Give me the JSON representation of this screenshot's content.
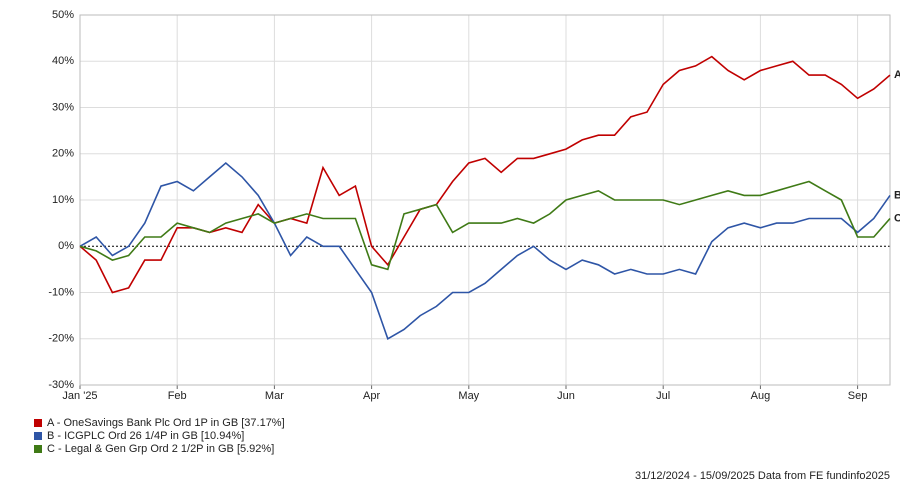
{
  "chart_data": {
    "type": "line",
    "categories": [
      "Jan '25",
      null,
      null,
      null,
      null,
      null,
      "Feb",
      null,
      null,
      null,
      null,
      null,
      "Mar",
      null,
      null,
      null,
      null,
      null,
      "Apr",
      null,
      null,
      null,
      null,
      null,
      "May",
      null,
      null,
      null,
      null,
      null,
      "Jun",
      null,
      null,
      null,
      null,
      null,
      "Jul",
      null,
      null,
      null,
      null,
      null,
      "Aug",
      null,
      null,
      null,
      null,
      null,
      "Sep",
      null,
      null
    ],
    "series": [
      {
        "name": "A - OneSavings Bank Plc Ord 1P in GB [37.17%]",
        "label": "A",
        "color": "#c00000",
        "values": [
          0,
          -3,
          -10,
          -9,
          -3,
          -3,
          4,
          4,
          3,
          4,
          3,
          9,
          5,
          6,
          5,
          17,
          11,
          13,
          0,
          -4,
          2,
          8,
          9,
          14,
          18,
          19,
          16,
          19,
          19,
          20,
          21,
          23,
          24,
          24,
          28,
          29,
          35,
          38,
          39,
          41,
          38,
          36,
          38,
          39,
          40,
          37,
          37,
          35,
          32,
          34,
          37
        ]
      },
      {
        "name": "B - ICGPLC Ord 26 1/4P in GB [10.94%]",
        "label": "B",
        "color": "#2e55a6",
        "values": [
          0,
          2,
          -2,
          0,
          5,
          13,
          14,
          12,
          15,
          18,
          15,
          11,
          5,
          -2,
          2,
          0,
          0,
          -5,
          -10,
          -20,
          -18,
          -15,
          -13,
          -10,
          -10,
          -8,
          -5,
          -2,
          0,
          -3,
          -5,
          -3,
          -4,
          -6,
          -5,
          -6,
          -6,
          -5,
          -6,
          1,
          4,
          5,
          4,
          5,
          5,
          6,
          6,
          6,
          3,
          6,
          11
        ]
      },
      {
        "name": "C - Legal & Gen Grp Ord 2 1/2P in GB [5.92%]",
        "label": "C",
        "color": "#3f7a16",
        "values": [
          0,
          -1,
          -3,
          -2,
          2,
          2,
          5,
          4,
          3,
          5,
          6,
          7,
          5,
          6,
          7,
          6,
          6,
          6,
          -4,
          -5,
          7,
          8,
          9,
          3,
          5,
          5,
          5,
          6,
          5,
          7,
          10,
          11,
          12,
          10,
          10,
          10,
          10,
          9,
          10,
          11,
          12,
          11,
          11,
          12,
          13,
          14,
          12,
          10,
          2,
          2,
          6
        ]
      }
    ],
    "ylim": [
      -30,
      50
    ],
    "yticks": [
      {
        "value": -30,
        "label": "-30%"
      },
      {
        "value": -20,
        "label": "-20%"
      },
      {
        "value": -10,
        "label": "-10%"
      },
      {
        "value": 0,
        "label": "0%"
      },
      {
        "value": 10,
        "label": "10%"
      },
      {
        "value": 20,
        "label": "20%"
      },
      {
        "value": 30,
        "label": "30%"
      },
      {
        "value": 40,
        "label": "40%"
      },
      {
        "value": 50,
        "label": "50%"
      }
    ],
    "grid": true,
    "footer": "31/12/2024 - 15/09/2025 Data from FE fundinfo2025"
  }
}
